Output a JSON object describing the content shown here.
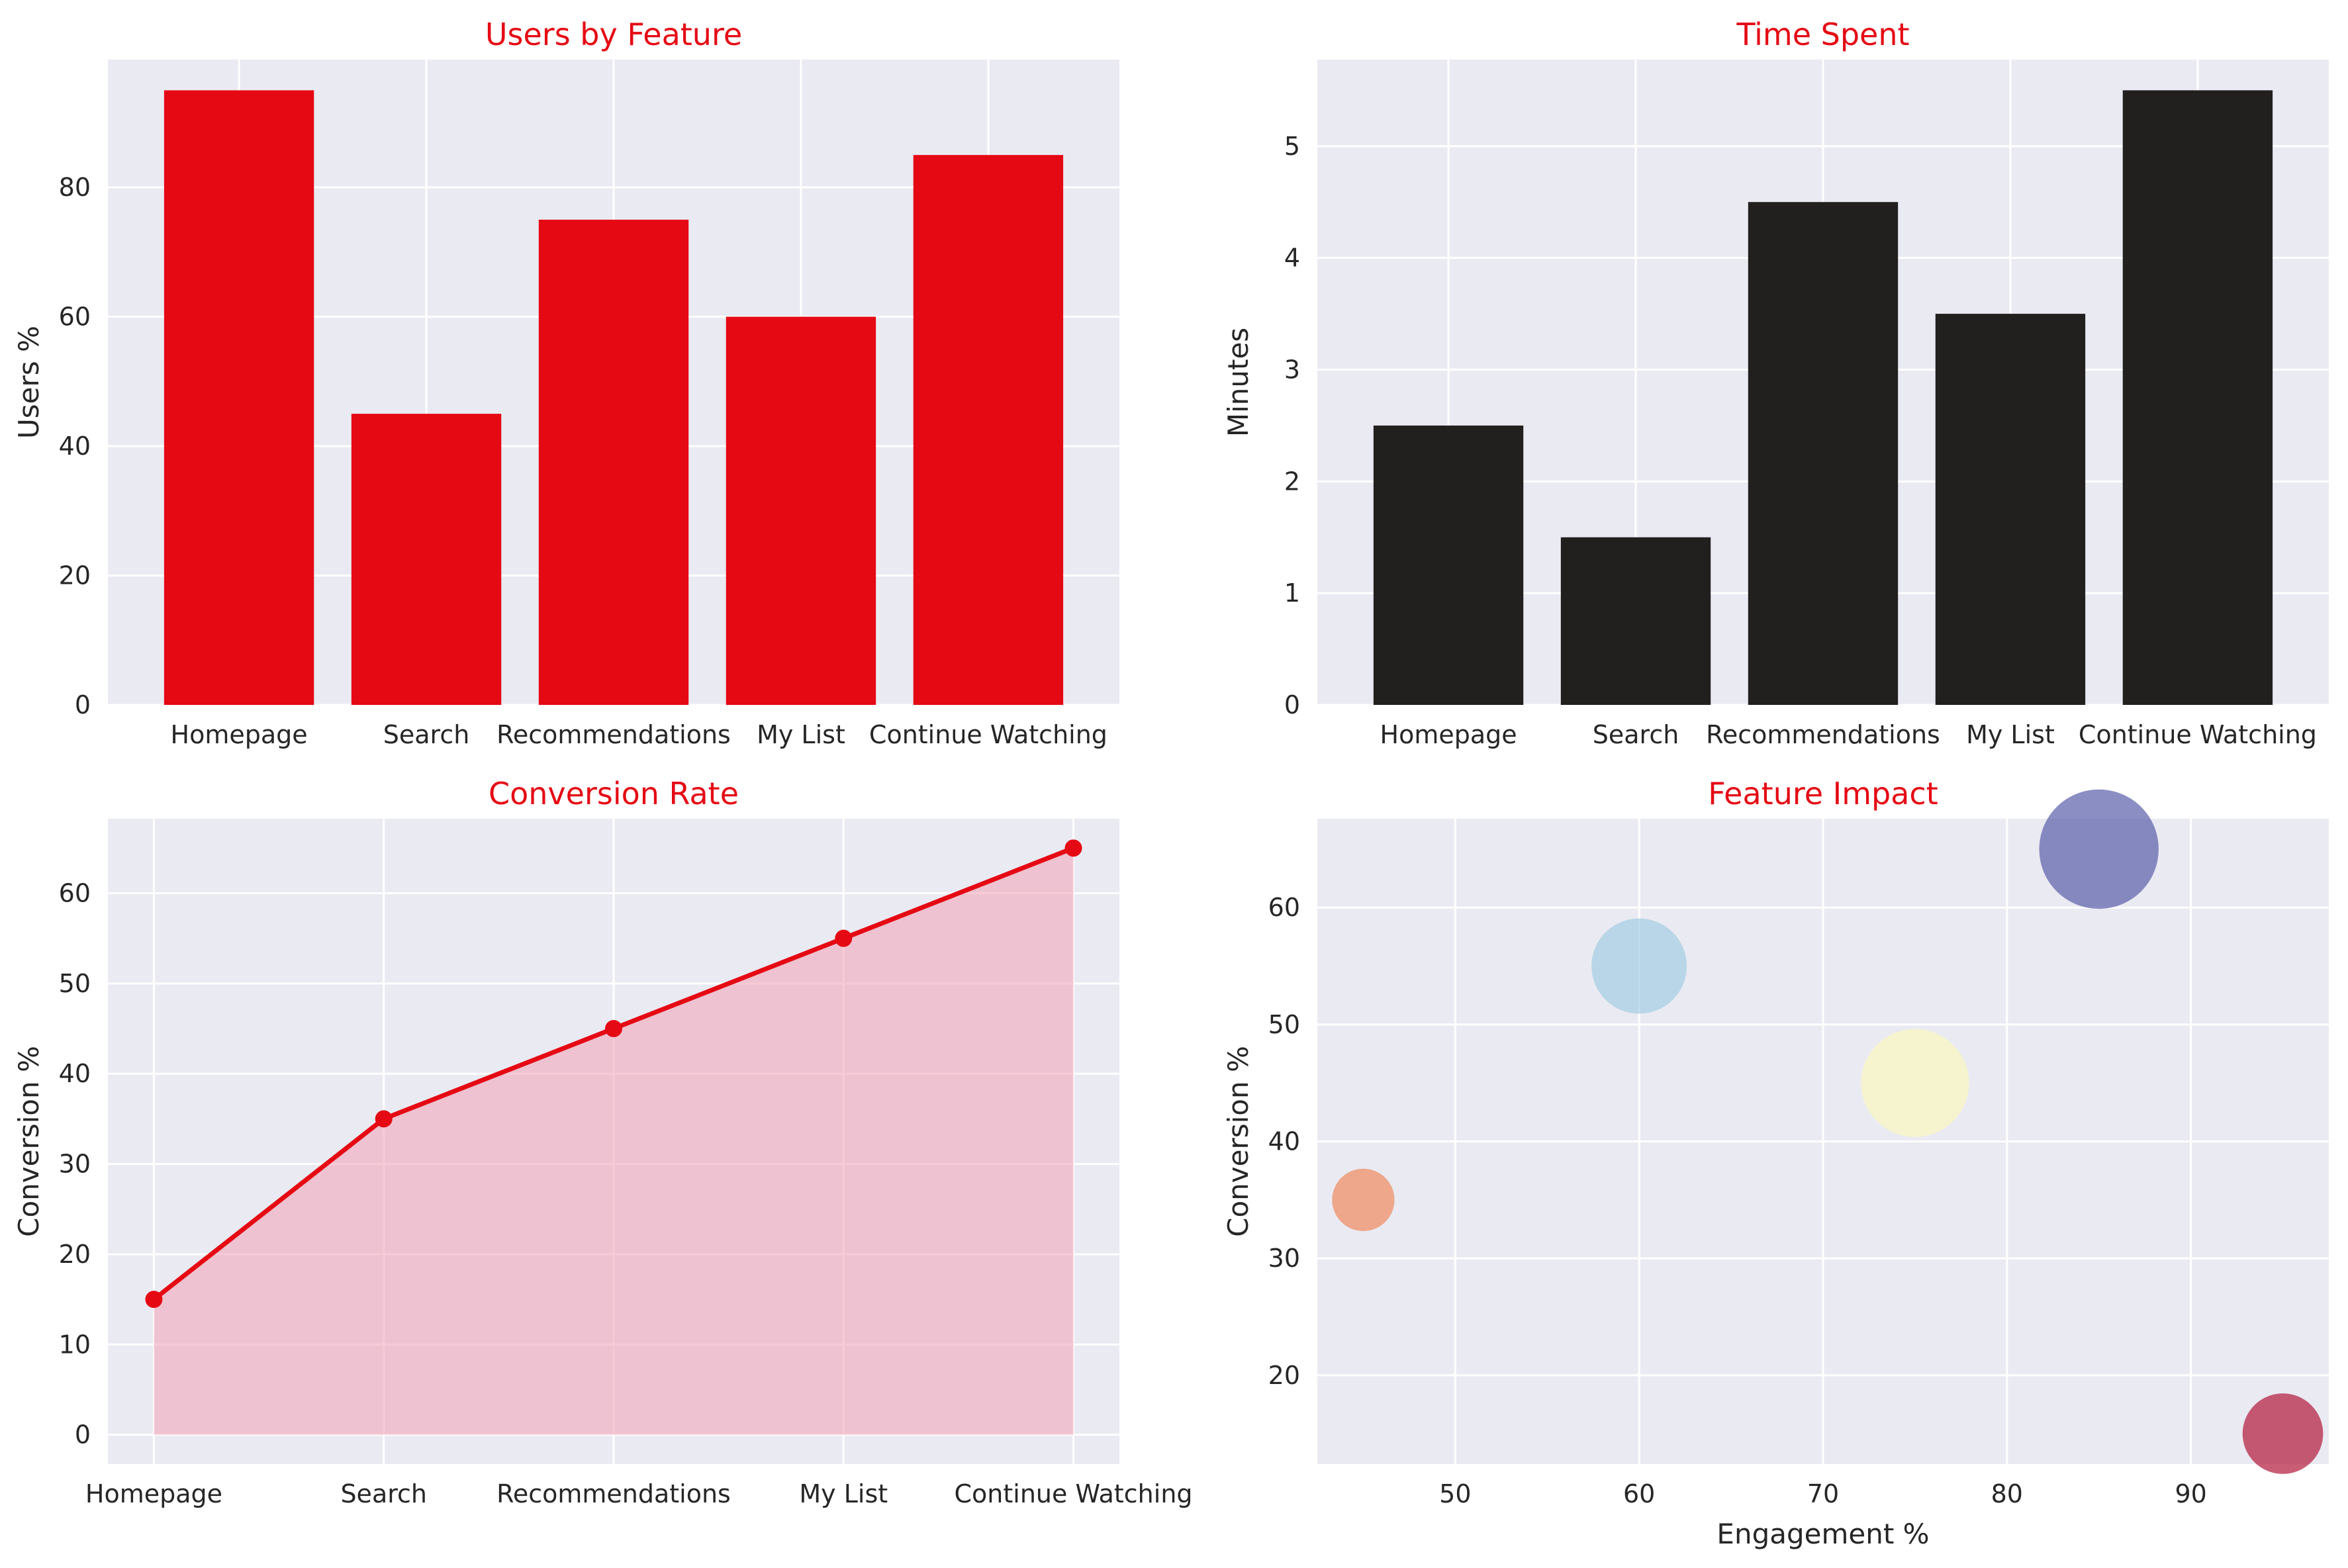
{
  "colors": {
    "title": "#e50914",
    "plot_background": "#eaeaf2",
    "bar_users": "#e50914",
    "bar_time": "#221f1f",
    "line": "#e50914",
    "area_fill": "#f0a0b4"
  },
  "chart_data": [
    {
      "type": "bar",
      "title": "Users by Feature",
      "xlabel": "",
      "ylabel": "Users %",
      "categories": [
        "Homepage",
        "Search",
        "Recommendations",
        "My List",
        "Continue Watching"
      ],
      "values": [
        95,
        45,
        75,
        60,
        85
      ],
      "ylim": [
        0,
        99.75
      ],
      "yticks": [
        0,
        20,
        40,
        60,
        80
      ],
      "grid": true
    },
    {
      "type": "bar",
      "title": "Time Spent",
      "xlabel": "",
      "ylabel": "Minutes",
      "categories": [
        "Homepage",
        "Search",
        "Recommendations",
        "My List",
        "Continue Watching"
      ],
      "values": [
        2.5,
        1.5,
        4.5,
        3.5,
        5.5
      ],
      "ylim": [
        0,
        5.775
      ],
      "yticks": [
        0,
        1,
        2,
        3,
        4,
        5
      ],
      "grid": true
    },
    {
      "type": "area",
      "title": "Conversion Rate",
      "xlabel": "",
      "ylabel": "Conversion %",
      "categories": [
        "Homepage",
        "Search",
        "Recommendations",
        "My List",
        "Continue Watching"
      ],
      "values": [
        15,
        35,
        45,
        55,
        65
      ],
      "ylim": [
        -3.25,
        68.25
      ],
      "yticks": [
        0,
        10,
        20,
        30,
        40,
        50,
        60
      ],
      "grid": true
    },
    {
      "type": "scatter",
      "title": "Feature Impact",
      "xlabel": "Engagement %",
      "ylabel": "Conversion %",
      "points": [
        {
          "x": 95,
          "y": 15,
          "size": 2.5,
          "color": "#b2183b"
        },
        {
          "x": 45,
          "y": 35,
          "size": 1.5,
          "color": "#ef8a5e"
        },
        {
          "x": 75,
          "y": 45,
          "size": 4.5,
          "color": "#fbf8c0"
        },
        {
          "x": 60,
          "y": 55,
          "size": 3.5,
          "color": "#a3cde3"
        },
        {
          "x": 85,
          "y": 65,
          "size": 5.5,
          "color": "#5a5ea9"
        }
      ],
      "xlim": [
        42.5,
        97.5
      ],
      "ylim": [
        12.4,
        67.6
      ],
      "xticks": [
        50,
        60,
        70,
        80,
        90
      ],
      "yticks": [
        20,
        30,
        40,
        50,
        60
      ],
      "grid": true
    }
  ]
}
